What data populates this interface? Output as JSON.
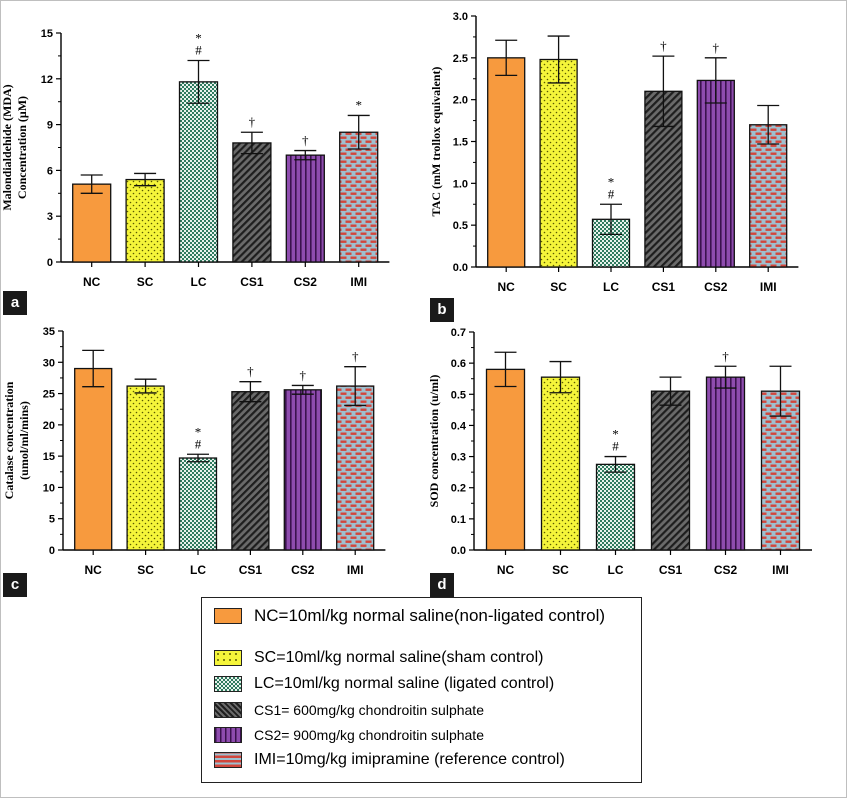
{
  "colors": {
    "NC": "#f79a3e",
    "SC": "#f5f53a",
    "LC": "#2f7a5e",
    "CS1": "#4d4d4d",
    "CS2": "#7f3f9c",
    "IMI": "#d2463c"
  },
  "chart_data": [
    {
      "panel": "a",
      "type": "bar",
      "ylabel_line1": "Malondialdehide (MDA)",
      "ylabel_line2": "Concentration  (μM)",
      "categories": [
        "NC",
        "SC",
        "LC",
        "CS1",
        "CS2",
        "IMI"
      ],
      "values": [
        5.1,
        5.4,
        11.8,
        7.8,
        7.0,
        8.5
      ],
      "errors": [
        0.6,
        0.4,
        1.4,
        0.7,
        0.3,
        1.1
      ],
      "annotations": [
        "",
        "",
        "*\n#",
        "†",
        "†",
        "*"
      ],
      "ylim": [
        0,
        15
      ],
      "yticks": [
        "0",
        "3",
        "6",
        "9",
        "12",
        "15"
      ]
    },
    {
      "panel": "b",
      "type": "bar",
      "ylabel_line1": "TAC (mM trollox equivalent)",
      "ylabel_line2": "",
      "categories": [
        "NC",
        "SC",
        "LC",
        "CS1",
        "CS2",
        "IMI"
      ],
      "values": [
        2.5,
        2.48,
        0.57,
        2.1,
        2.23,
        1.7
      ],
      "errors": [
        0.21,
        0.28,
        0.18,
        0.42,
        0.27,
        0.23
      ],
      "annotations": [
        "",
        "",
        "*\n#",
        "†",
        "†",
        ""
      ],
      "ylim": [
        0,
        3
      ],
      "yticks": [
        "0.0",
        "0.5",
        "1.0",
        "1.5",
        "2.0",
        "2.5",
        "3.0"
      ]
    },
    {
      "panel": "c",
      "type": "bar",
      "ylabel_line1": "Catalase concentration",
      "ylabel_line2": "(umol/ml/mins)",
      "categories": [
        "NC",
        "SC",
        "LC",
        "CS1",
        "CS2",
        "IMI"
      ],
      "values": [
        29,
        26.2,
        14.7,
        25.3,
        25.6,
        26.2
      ],
      "errors": [
        2.9,
        1.1,
        0.6,
        1.6,
        0.7,
        3.1
      ],
      "annotations": [
        "",
        "",
        "*\n#",
        "†",
        "†",
        "†"
      ],
      "ylim": [
        0,
        35
      ],
      "yticks": [
        "0",
        "5",
        "10",
        "15",
        "20",
        "25",
        "30",
        "35"
      ]
    },
    {
      "panel": "d",
      "type": "bar",
      "ylabel_line1": "SOD concentration (u/ml)",
      "ylabel_line2": "",
      "categories": [
        "NC",
        "SC",
        "LC",
        "CS1",
        "CS2",
        "IMI"
      ],
      "values": [
        0.58,
        0.555,
        0.275,
        0.51,
        0.555,
        0.51
      ],
      "errors": [
        0.055,
        0.05,
        0.025,
        0.045,
        0.035,
        0.08
      ],
      "annotations": [
        "",
        "",
        "*\n#",
        "",
        "†",
        ""
      ],
      "ylim": [
        0,
        0.7
      ],
      "yticks": [
        "0.0",
        "0.1",
        "0.2",
        "0.3",
        "0.4",
        "0.5",
        "0.6",
        "0.7"
      ]
    }
  ],
  "legend": [
    {
      "key": "NC",
      "label": "NC=10ml/kg normal saline(non-ligated control)"
    },
    {
      "key": "SC",
      "label": "SC=10ml/kg normal saline(sham control)"
    },
    {
      "key": "LC",
      "label": "LC=10ml/kg normal saline (ligated control)"
    },
    {
      "key": "CS1",
      "label": "CS1= 600mg/kg chondroitin sulphate"
    },
    {
      "key": "CS2",
      "label": "CS2= 900mg/kg chondroitin sulphate"
    },
    {
      "key": "IMI",
      "label": "IMI=10mg/kg imipramine (reference control)"
    }
  ]
}
